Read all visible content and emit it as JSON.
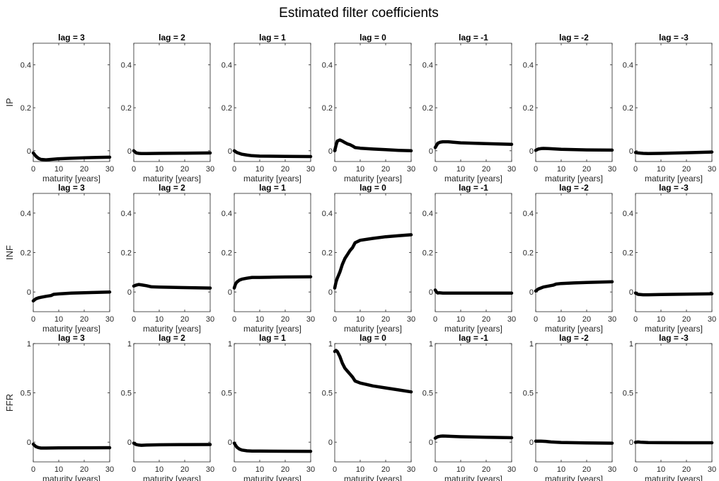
{
  "chart_data": {
    "type": "line",
    "title": "Estimated filter coefficients",
    "xlabel": "maturity [years]",
    "xlim": [
      0,
      30
    ],
    "xticks": [
      0,
      10,
      20,
      30
    ],
    "grid": false,
    "line_color": "#000000",
    "columns": [
      "lag = 3",
      "lag = 2",
      "lag = 1",
      "lag = 0",
      "lag = -1",
      "lag = -2",
      "lag = -3"
    ],
    "rows": [
      {
        "ylabel": "IP",
        "ylim": [
          -0.05,
          0.5
        ],
        "yticks": [
          0,
          0.2,
          0.4
        ],
        "yticklabels": [
          "0",
          "0.2",
          "0.4"
        ],
        "series": [
          {
            "x": [
              0,
              1,
              2,
              3,
              5,
              7,
              10,
              15,
              20,
              25,
              30
            ],
            "y": [
              -0.01,
              -0.025,
              -0.035,
              -0.04,
              -0.042,
              -0.04,
              -0.037,
              -0.035,
              -0.033,
              -0.031,
              -0.03
            ]
          },
          {
            "x": [
              0,
              1,
              2,
              3,
              5,
              10,
              20,
              30
            ],
            "y": [
              0.0,
              -0.01,
              -0.012,
              -0.013,
              -0.013,
              -0.012,
              -0.011,
              -0.01
            ]
          },
          {
            "x": [
              0,
              1,
              2,
              3,
              5,
              7,
              10,
              20,
              30
            ],
            "y": [
              0.0,
              -0.008,
              -0.012,
              -0.016,
              -0.02,
              -0.023,
              -0.025,
              -0.026,
              -0.027
            ]
          },
          {
            "x": [
              0,
              0.5,
              1,
              2,
              3,
              4,
              5,
              6,
              7,
              8,
              10,
              15,
              20,
              25,
              30
            ],
            "y": [
              0.0,
              0.025,
              0.045,
              0.05,
              0.045,
              0.038,
              0.032,
              0.028,
              0.022,
              0.015,
              0.012,
              0.008,
              0.005,
              0.002,
              0.0
            ]
          },
          {
            "x": [
              0,
              1,
              2,
              3,
              5,
              7,
              10,
              20,
              30
            ],
            "y": [
              0.015,
              0.035,
              0.04,
              0.042,
              0.042,
              0.04,
              0.037,
              0.033,
              0.03
            ]
          },
          {
            "x": [
              0,
              1,
              2,
              3,
              5,
              10,
              20,
              30
            ],
            "y": [
              0.002,
              0.008,
              0.01,
              0.011,
              0.01,
              0.007,
              0.004,
              0.003
            ]
          },
          {
            "x": [
              0,
              1,
              3,
              5,
              10,
              20,
              30
            ],
            "y": [
              -0.008,
              -0.01,
              -0.012,
              -0.013,
              -0.012,
              -0.009,
              -0.006
            ]
          }
        ]
      },
      {
        "ylabel": "INF",
        "ylim": [
          -0.1,
          0.5
        ],
        "yticks": [
          0,
          0.2,
          0.4
        ],
        "yticklabels": [
          "0",
          "0.2",
          "0.4"
        ],
        "series": [
          {
            "x": [
              0,
              1,
              2,
              3,
              5,
              7,
              8,
              10,
              15,
              20,
              25,
              30
            ],
            "y": [
              -0.045,
              -0.035,
              -0.03,
              -0.027,
              -0.022,
              -0.018,
              -0.012,
              -0.01,
              -0.006,
              -0.004,
              -0.002,
              0.0
            ]
          },
          {
            "x": [
              0,
              1,
              2,
              3,
              5,
              7,
              10,
              20,
              30
            ],
            "y": [
              0.03,
              0.035,
              0.038,
              0.036,
              0.032,
              0.026,
              0.025,
              0.022,
              0.02
            ]
          },
          {
            "x": [
              0,
              0.5,
              1,
              2,
              3,
              5,
              7,
              10,
              15,
              20,
              30
            ],
            "y": [
              0.02,
              0.04,
              0.05,
              0.06,
              0.065,
              0.07,
              0.074,
              0.074,
              0.075,
              0.076,
              0.077
            ]
          },
          {
            "x": [
              0,
              0.5,
              1,
              2,
              3,
              4,
              5,
              6,
              7,
              8,
              10,
              15,
              20,
              25,
              30
            ],
            "y": [
              0.02,
              0.05,
              0.07,
              0.1,
              0.14,
              0.17,
              0.19,
              0.21,
              0.225,
              0.25,
              0.262,
              0.272,
              0.28,
              0.285,
              0.29
            ]
          },
          {
            "x": [
              0,
              0.5,
              1,
              1.5,
              3,
              5,
              10,
              20,
              30
            ],
            "y": [
              0.01,
              0.0,
              -0.005,
              -0.004,
              -0.006,
              -0.006,
              -0.006,
              -0.006,
              -0.006
            ]
          },
          {
            "x": [
              0,
              1,
              2,
              3,
              5,
              7,
              8,
              10,
              15,
              20,
              25,
              30
            ],
            "y": [
              0.005,
              0.015,
              0.02,
              0.025,
              0.03,
              0.035,
              0.04,
              0.043,
              0.046,
              0.048,
              0.05,
              0.052
            ]
          },
          {
            "x": [
              0,
              1,
              3,
              5,
              10,
              20,
              30
            ],
            "y": [
              -0.005,
              -0.012,
              -0.014,
              -0.014,
              -0.013,
              -0.011,
              -0.009
            ]
          }
        ]
      },
      {
        "ylabel": "FFR",
        "ylim": [
          -0.2,
          1.0
        ],
        "yticks": [
          0,
          0.5,
          1
        ],
        "yticklabels": [
          "0",
          "0.5",
          "1"
        ],
        "series": [
          {
            "x": [
              0,
              1,
              2,
              3,
              5,
              10,
              20,
              30
            ],
            "y": [
              -0.02,
              -0.045,
              -0.055,
              -0.06,
              -0.06,
              -0.058,
              -0.057,
              -0.056
            ]
          },
          {
            "x": [
              0,
              1,
              2,
              3,
              5,
              10,
              20,
              30
            ],
            "y": [
              -0.01,
              -0.025,
              -0.03,
              -0.032,
              -0.03,
              -0.027,
              -0.025,
              -0.024
            ]
          },
          {
            "x": [
              0,
              1,
              2,
              3,
              5,
              7,
              10,
              20,
              30
            ],
            "y": [
              -0.01,
              -0.05,
              -0.07,
              -0.08,
              -0.088,
              -0.09,
              -0.09,
              -0.092,
              -0.093
            ]
          },
          {
            "x": [
              0,
              0.5,
              1,
              2,
              3,
              4,
              5,
              6,
              7,
              8,
              10,
              15,
              20,
              25,
              30
            ],
            "y": [
              0.92,
              0.93,
              0.92,
              0.87,
              0.8,
              0.75,
              0.72,
              0.69,
              0.66,
              0.62,
              0.6,
              0.57,
              0.55,
              0.53,
              0.51
            ]
          },
          {
            "x": [
              0,
              1,
              2,
              3,
              5,
              10,
              20,
              30
            ],
            "y": [
              0.04,
              0.055,
              0.06,
              0.062,
              0.06,
              0.055,
              0.05,
              0.045
            ]
          },
          {
            "x": [
              0,
              2,
              4,
              6,
              10,
              20,
              30
            ],
            "y": [
              0.01,
              0.01,
              0.008,
              0.002,
              -0.003,
              -0.008,
              -0.01
            ]
          },
          {
            "x": [
              0,
              1,
              2,
              5,
              10,
              20,
              30
            ],
            "y": [
              -0.002,
              0.002,
              0.0,
              -0.004,
              -0.005,
              -0.006,
              -0.006
            ]
          }
        ]
      }
    ]
  }
}
